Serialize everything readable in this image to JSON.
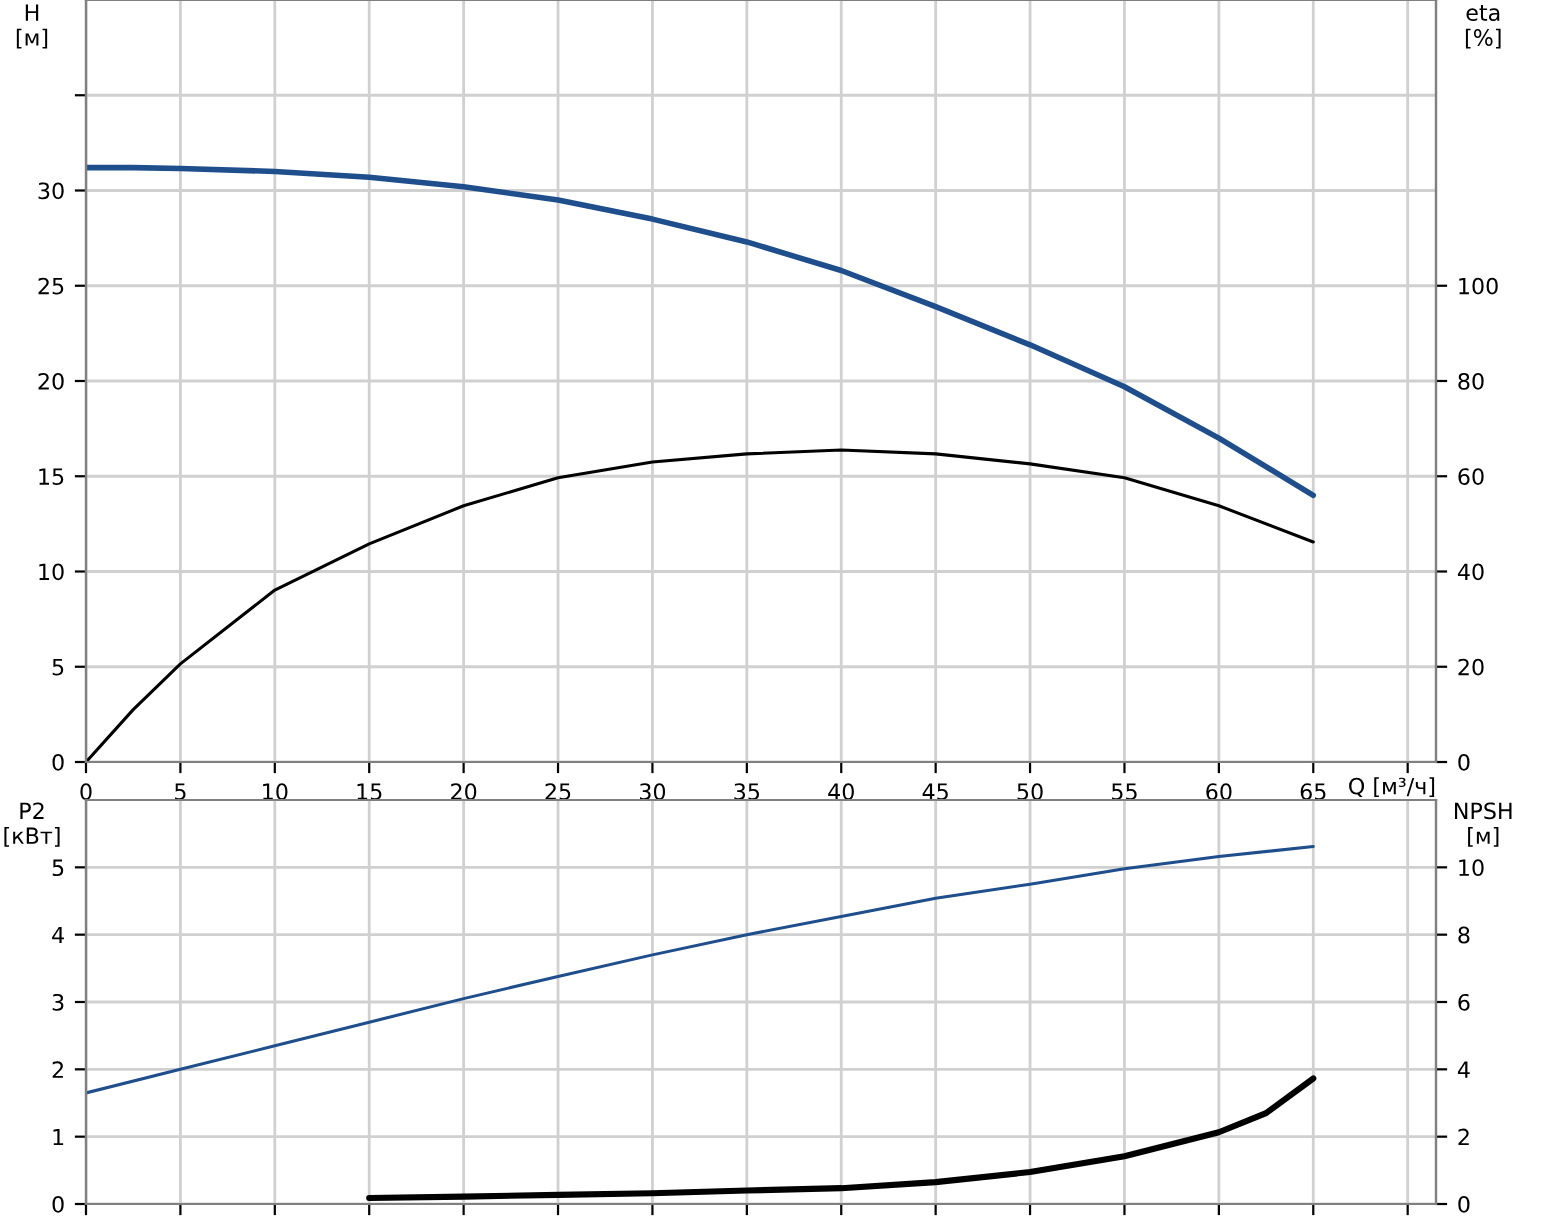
{
  "chart_data": [
    {
      "type": "line",
      "xlabel": "Q [м³/ч]",
      "ylabel": "H\n[м]",
      "y2label": "eta\n[%]",
      "x": [
        0,
        2.5,
        5,
        10,
        15,
        20,
        25,
        30,
        35,
        40,
        45,
        50,
        55,
        60,
        65
      ],
      "xlim": [
        0,
        71.5
      ],
      "xticks": [
        0,
        5,
        10,
        15,
        20,
        25,
        30,
        35,
        40,
        45,
        50,
        55,
        60,
        65,
        {
          "value": 70,
          "label": null
        }
      ],
      "ylim": [
        0,
        40
      ],
      "yticks": [
        0,
        5,
        10,
        15,
        20,
        25,
        30,
        {
          "value": 35,
          "label": null
        }
      ],
      "y2lim": [
        0,
        160
      ],
      "y2ticks": [
        0,
        20,
        40,
        60,
        80,
        100
      ],
      "grid": true,
      "series": [
        {
          "color": "#1f4e8c",
          "values": [
            31.2,
            31.2,
            31.15,
            31.0,
            30.7,
            30.2,
            29.5,
            28.5,
            27.3,
            25.8,
            23.9,
            21.9,
            19.7,
            17.0,
            14.0
          ]
        },
        {
          "color": "#000000",
          "axis": "y2",
          "values": [
            0,
            11,
            20.6,
            36.1,
            45.8,
            53.8,
            59.7,
            63.0,
            64.7,
            65.5,
            64.7,
            62.6,
            59.7,
            53.8,
            46.2
          ]
        }
      ]
    },
    {
      "type": "line",
      "ylabel": "P2\n[кВт]",
      "y2label": "NPSH\n[м]",
      "xlim": [
        0,
        71.5
      ],
      "xticks": [
        0,
        5,
        10,
        15,
        20,
        25,
        30,
        35,
        40,
        45,
        50,
        55,
        60,
        65,
        70
      ],
      "ylim": [
        0,
        6
      ],
      "yticks": [
        0,
        1,
        2,
        3,
        4,
        5
      ],
      "y2lim": [
        0,
        12
      ],
      "y2ticks": [
        0,
        2,
        4,
        6,
        8,
        10
      ],
      "tick_labels": "y",
      "grid": true,
      "series": [
        {
          "color": "#1f4e8c",
          "x": [
            0,
            5,
            10,
            15,
            20,
            25,
            30,
            35,
            40,
            45,
            50,
            55,
            60,
            65
          ],
          "values": [
            1.65,
            2.0,
            2.35,
            2.7,
            3.05,
            3.38,
            3.7,
            4.0,
            4.27,
            4.54,
            4.75,
            4.98,
            5.16,
            5.31
          ]
        },
        {
          "color": "#000000",
          "axis": "y2",
          "x": [
            15,
            20,
            25,
            30,
            35,
            40,
            45,
            50,
            55,
            60,
            62.5,
            65
          ],
          "values": [
            0.18,
            0.22,
            0.27,
            0.32,
            0.4,
            0.47,
            0.65,
            0.95,
            1.42,
            2.13,
            2.7,
            3.73
          ]
        }
      ]
    }
  ]
}
